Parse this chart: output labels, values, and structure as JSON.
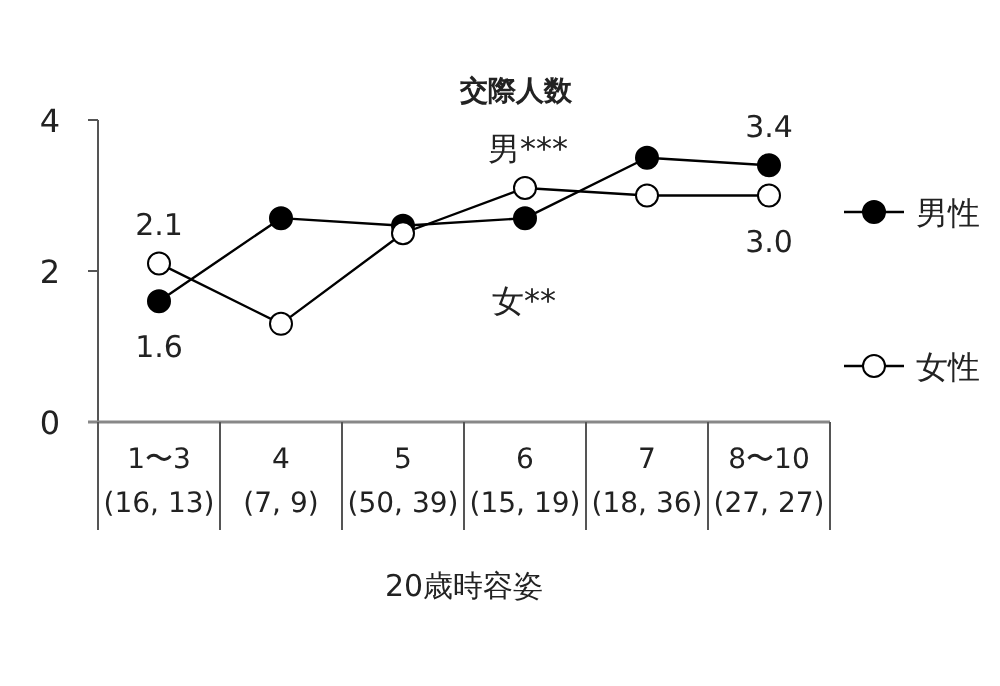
{
  "chart_data": {
    "type": "line",
    "title": "交際人数",
    "xlabel": "20歳時容姿",
    "categories": [
      "1〜3\n(16, 13)",
      "4\n(7, 9)",
      "5\n(50, 39)",
      "6\n(15, 19)",
      "7\n(18, 36)",
      "8〜10\n(27, 27)"
    ],
    "series": [
      {
        "name": "男性",
        "color": "#000000",
        "marker": "circle",
        "values": [
          1.6,
          2.7,
          2.6,
          2.7,
          3.5,
          3.4
        ],
        "value_labels": [
          "1.6",
          null,
          null,
          null,
          null,
          "3.4"
        ]
      },
      {
        "name": "女性",
        "color": "#000000",
        "marker": "circle",
        "values": [
          2.1,
          1.3,
          2.5,
          3.1,
          3.0,
          3.0
        ],
        "value_labels": [
          "2.1",
          null,
          null,
          null,
          null,
          "3.0"
        ]
      }
    ],
    "annotations": [
      "男***",
      "女**"
    ],
    "ylim": [
      0,
      4
    ],
    "yticks": [
      0,
      2,
      4
    ],
    "grid": false,
    "legend": "right"
  }
}
